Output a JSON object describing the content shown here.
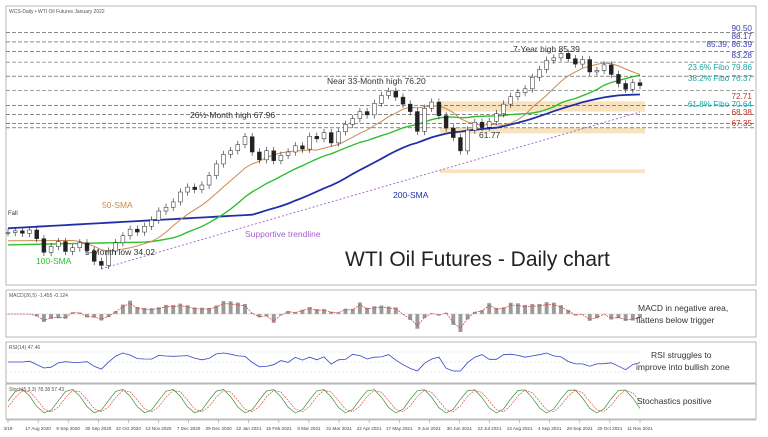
{
  "header": {
    "symbol_line": "WCS-Daily • WTI Oil Futures January 2022"
  },
  "title": "WTI Oil Futures - Daily chart",
  "colors": {
    "price": "#222222",
    "sma50": "#c98a50",
    "sma100": "#2fbf2f",
    "sma200": "#1f2fa8",
    "trendline": "#a45fd0",
    "fibo": "#1aa6a6",
    "resistance_blue": "#3b3bb0",
    "support_red": "#c0392b",
    "zone": "#f6d9a8",
    "macd_hist": "#9a9a9a",
    "macd_signal": "#d33",
    "rsi": "#3345c7",
    "stoch_k": "#3a8f3a",
    "stoch_d": "#d33"
  },
  "price_levels": [
    {
      "label": "90.50",
      "value": 90.5,
      "color": "#3b3bb0"
    },
    {
      "label": "88.17",
      "value": 88.17,
      "color": "#3b3bb0"
    },
    {
      "label": "85.39, 86.39",
      "value": 85.8,
      "color": "#3b3bb0"
    },
    {
      "label": "83.28",
      "value": 83.28,
      "color": "#3b3bb0"
    },
    {
      "label": "23.6% Fibo 79.86",
      "value": 79.86,
      "color": "#1aa6a6"
    },
    {
      "label": "38.2% Fibo 76.37",
      "value": 76.37,
      "color": "#1aa6a6"
    },
    {
      "label": "72.71",
      "value": 72.71,
      "color": "#c0392b"
    },
    {
      "label": "61.8% Fibo 70.64",
      "value": 70.64,
      "color": "#1aa6a6"
    },
    {
      "label": "68.38",
      "value": 68.38,
      "color": "#c0392b"
    },
    {
      "label": "67.35",
      "value": 67.35,
      "color": "#c0392b"
    }
  ],
  "annotations": {
    "seven_year_high": "7-Year high 85.39",
    "near_33_month_high": "Near 33-Month high 76.20",
    "month_high_26": "26½-Month high 67.96",
    "low_6177": "61.77",
    "five_month_low": "5-Month low 34.02",
    "sma50": "50-SMA",
    "sma100": "100-SMA",
    "sma200": "200-SMA",
    "supportive_trendline": "Supportive trendline",
    "fall": "Fall"
  },
  "panels": {
    "macd": {
      "header": "MACD(26,5) -1.455 -0.124",
      "comment": [
        "MACD in negative area,",
        "flattens below trigger"
      ]
    },
    "rsi": {
      "header": "RSI(14) 47.46",
      "comment": [
        "RSI struggles to",
        "improve into bullish zone"
      ]
    },
    "stoch": {
      "header": "Stoch(5,3,3) 78.38 57.43",
      "comment": [
        "Stochastics positive"
      ]
    }
  },
  "chart_data": {
    "type": "line",
    "title": "WTI Oil Futures - Daily chart",
    "x_tick_labels": [
      "3/19",
      "17 Aug 2020",
      "9 Sep 2020",
      "30 Sep 2020",
      "22 Oct 2020",
      "13 Nov 2020",
      "7 Dec 2020",
      "29 Dec 2020",
      "22 Jan 2021",
      "15 Feb 2021",
      "8 Mar 2021",
      "31 Mar 2021",
      "22 Apr 2021",
      "17 May 2021",
      "9 Jun 2021",
      "30 Jun 2021",
      "22 Jul 2021",
      "13 Aug 2021",
      "4 Sep 2021",
      "28 Sep 2021",
      "20 Oct 2021",
      "11 Nov 2021"
    ],
    "ylim": [
      30,
      93
    ],
    "series": [
      {
        "name": "WTI",
        "values": [
          42,
          42.4,
          41.8,
          42.6,
          40.5,
          37.2,
          38.6,
          39.8,
          37.4,
          38.3,
          39.5,
          37.6,
          35,
          34.02,
          37.5,
          39.5,
          41.2,
          42.8,
          42.1,
          43.5,
          45,
          47.2,
          48.1,
          49.4,
          51.8,
          53,
          52.4,
          53.5,
          55.8,
          58.6,
          60.9,
          61.8,
          63.3,
          65.2,
          61.5,
          59.6,
          61.8,
          59.4,
          60.7,
          61.5,
          63,
          62.2,
          65.3,
          64.7,
          66.2,
          63.7,
          66.4,
          68.2,
          69.6,
          71.3,
          70.5,
          73.3,
          75.2,
          76.2,
          74.8,
          73.1,
          71.3,
          66.5,
          72.1,
          73.6,
          70.3,
          67.3,
          65,
          61.77,
          66.8,
          68.7,
          67.5,
          68.9,
          70.8,
          73.1,
          74.9,
          75.9,
          76.8,
          79.6,
          81.5,
          83.7,
          84.3,
          85.39,
          84.1,
          82.8,
          83.9,
          80.9,
          81.3,
          82.6,
          80.3,
          78.1,
          76.7,
          78.3,
          77.6
        ]
      },
      {
        "name": "50-SMA",
        "values": [
          null,
          null,
          null,
          null,
          null,
          null,
          null,
          null,
          null,
          null,
          null,
          null,
          null,
          null,
          null,
          null,
          null,
          null,
          null,
          null,
          null,
          null,
          null,
          null,
          null,
          null,
          null,
          null,
          null,
          null,
          null,
          null,
          null,
          null,
          null,
          null,
          null,
          null,
          null,
          null,
          null,
          null,
          null,
          null,
          null,
          null,
          null,
          null,
          null,
          null,
          null,
          null,
          null,
          null,
          null,
          null,
          null,
          null,
          null,
          null,
          null,
          null,
          null,
          null,
          null,
          null,
          null,
          null,
          null,
          null,
          null,
          null,
          null,
          null,
          null,
          null,
          null,
          null,
          null,
          null,
          null,
          null,
          null,
          null,
          null,
          null,
          null,
          null,
          null
        ]
      },
      {
        "name": "100-SMA",
        "values": []
      },
      {
        "name": "200-SMA",
        "values": []
      }
    ]
  }
}
